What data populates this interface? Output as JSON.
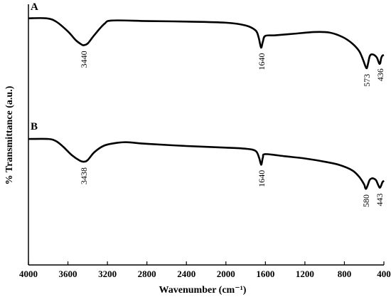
{
  "chart_data": {
    "type": "line",
    "xlabel": "Wavenumber (cm⁻¹)",
    "ylabel": "% Transmittance (a.u.)",
    "xlim": [
      4000,
      400
    ],
    "x_reversed": true,
    "x_ticks": [
      4000,
      3600,
      3200,
      2800,
      2400,
      2000,
      1600,
      1200,
      800,
      400
    ],
    "grid": false,
    "legend": "none",
    "line_color": "#000000",
    "series": [
      {
        "name": "A",
        "x": [
          4000,
          3820,
          3720,
          3600,
          3520,
          3460,
          3440,
          3400,
          3330,
          3230,
          3150,
          2800,
          2400,
          2000,
          1800,
          1700,
          1670,
          1650,
          1640,
          1625,
          1600,
          1500,
          1300,
          1100,
          950,
          820,
          720,
          650,
          610,
          590,
          573,
          560,
          545,
          530,
          510,
          490,
          470,
          455,
          445,
          436,
          428,
          415,
          400
        ],
        "y": [
          0.95,
          0.95,
          0.92,
          0.83,
          0.75,
          0.71,
          0.705,
          0.72,
          0.8,
          0.9,
          0.93,
          0.925,
          0.92,
          0.91,
          0.885,
          0.84,
          0.78,
          0.7,
          0.685,
          0.74,
          0.79,
          0.795,
          0.81,
          0.825,
          0.82,
          0.78,
          0.72,
          0.65,
          0.57,
          0.52,
          0.495,
          0.54,
          0.6,
          0.62,
          0.62,
          0.61,
          0.59,
          0.555,
          0.535,
          0.545,
          0.585,
          0.61,
          0.615
        ]
      },
      {
        "name": "B",
        "x": [
          4000,
          3800,
          3720,
          3650,
          3560,
          3480,
          3438,
          3400,
          3330,
          3230,
          3100,
          3000,
          2800,
          2400,
          2000,
          1800,
          1700,
          1665,
          1650,
          1640,
          1625,
          1600,
          1400,
          1200,
          1000,
          850,
          720,
          650,
          600,
          590,
          580,
          565,
          545,
          525,
          505,
          480,
          460,
          443,
          430,
          415,
          400
        ],
        "y": [
          0.94,
          0.94,
          0.92,
          0.87,
          0.79,
          0.74,
          0.73,
          0.745,
          0.82,
          0.88,
          0.905,
          0.91,
          0.895,
          0.875,
          0.86,
          0.85,
          0.83,
          0.77,
          0.72,
          0.705,
          0.77,
          0.8,
          0.78,
          0.76,
          0.73,
          0.7,
          0.65,
          0.59,
          0.52,
          0.49,
          0.48,
          0.51,
          0.56,
          0.575,
          0.575,
          0.56,
          0.52,
          0.49,
          0.505,
          0.54,
          0.555
        ]
      }
    ],
    "annotations": [
      {
        "series": "A",
        "x": 3440,
        "label": "3440"
      },
      {
        "series": "A",
        "x": 1640,
        "label": "1640"
      },
      {
        "series": "A",
        "x": 573,
        "label": "573"
      },
      {
        "series": "A",
        "x": 436,
        "label": "436"
      },
      {
        "series": "B",
        "x": 3438,
        "label": "3438"
      },
      {
        "series": "B",
        "x": 1640,
        "label": "1640"
      },
      {
        "series": "B",
        "x": 580,
        "label": "580"
      },
      {
        "series": "B",
        "x": 443,
        "label": "443"
      }
    ]
  }
}
